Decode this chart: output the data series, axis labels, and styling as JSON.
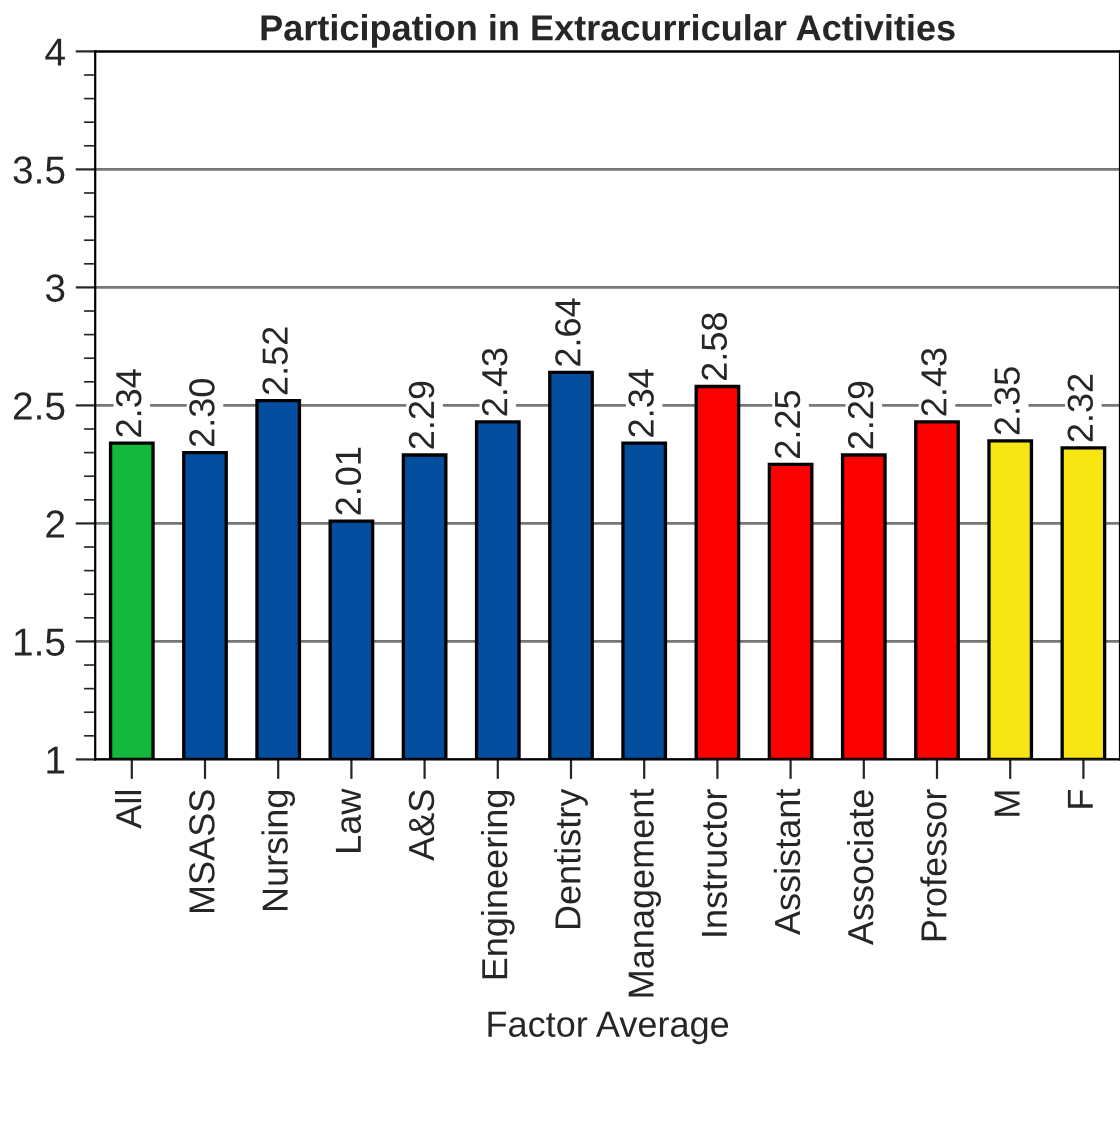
{
  "chart_data": {
    "type": "bar",
    "title": "Participation in Extracurricular Activities",
    "xlabel": "Factor Average",
    "categories": [
      "All",
      "MSASS",
      "Nursing",
      "Law",
      "A&S",
      "Engineering",
      "Dentistry",
      "Management",
      "Instructor",
      "Assistant",
      "Associate",
      "Professor",
      "M",
      "F"
    ],
    "values": [
      2.34,
      2.3,
      2.52,
      2.01,
      2.29,
      2.43,
      2.64,
      2.34,
      2.58,
      2.25,
      2.29,
      2.43,
      2.35,
      2.32
    ],
    "value_labels": [
      "2.34",
      "2.30",
      "2.52",
      "2.01",
      "2.29",
      "2.43",
      "2.64",
      "2.34",
      "2.58",
      "2.25",
      "2.29",
      "2.43",
      "2.35",
      "2.32"
    ],
    "colors": [
      "#14b83c",
      "#034e9e",
      "#034e9e",
      "#034e9e",
      "#034e9e",
      "#034e9e",
      "#034e9e",
      "#034e9e",
      "#fd0000",
      "#fd0000",
      "#fd0000",
      "#fd0000",
      "#f7e614",
      "#f7e614"
    ],
    "ylim": [
      1,
      4
    ],
    "yticks": [
      1,
      1.5,
      2,
      2.5,
      3,
      3.5,
      4
    ],
    "grid": "y"
  }
}
